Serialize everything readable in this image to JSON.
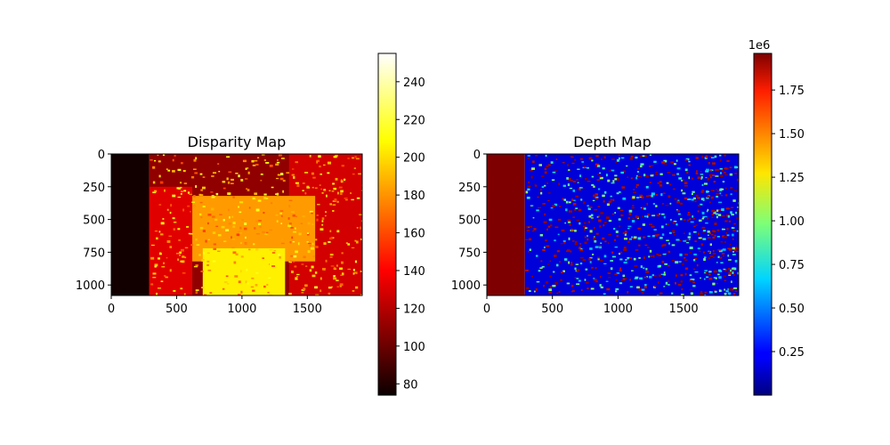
{
  "chart_data": [
    {
      "type": "heatmap",
      "title": "Disparity Map",
      "colormap": "hot",
      "image_width": 1920,
      "image_height": 1080,
      "x_ticks": [
        0,
        500,
        1000,
        1500
      ],
      "y_ticks": [
        0,
        250,
        500,
        750,
        1000
      ],
      "colorbar": {
        "min": 74,
        "max": 255,
        "ticks": [
          80,
          100,
          120,
          140,
          160,
          180,
          200,
          220,
          240
        ],
        "offset_label": ""
      },
      "regions": [
        {
          "name": "left-empty-band",
          "x": [
            0,
            290
          ],
          "y": [
            0,
            1080
          ],
          "value": 76
        },
        {
          "name": "background-wall",
          "x": [
            290,
            1920
          ],
          "y": [
            0,
            1080
          ],
          "value": 110
        },
        {
          "name": "right-panel",
          "x": [
            1360,
            1920
          ],
          "y": [
            0,
            1080
          ],
          "value": 128
        },
        {
          "name": "left-figure",
          "x": [
            290,
            620
          ],
          "y": [
            250,
            1080
          ],
          "value": 132
        },
        {
          "name": "chessboard",
          "x": [
            620,
            1560
          ],
          "y": [
            320,
            820
          ],
          "value": 182
        },
        {
          "name": "table-base",
          "x": [
            700,
            1330
          ],
          "y": [
            720,
            1080
          ],
          "value": 205
        }
      ]
    },
    {
      "type": "heatmap",
      "title": "Depth Map",
      "colormap": "jet",
      "image_width": 1920,
      "image_height": 1080,
      "x_ticks": [
        0,
        500,
        1000,
        1500
      ],
      "y_ticks": [
        0,
        250,
        500,
        750,
        1000
      ],
      "colorbar": {
        "min": 0,
        "max": 1960000,
        "ticks": [
          0.25,
          0.5,
          0.75,
          1.0,
          1.25,
          1.5,
          1.75
        ],
        "tick_labels": [
          "0.25",
          "0.50",
          "0.75",
          "1.00",
          "1.25",
          "1.50",
          "1.75"
        ],
        "offset_label": "1e6"
      },
      "regions": [
        {
          "name": "left-empty-band",
          "x": [
            0,
            290
          ],
          "y": [
            0,
            1080
          ],
          "value": 1960000
        },
        {
          "name": "scene",
          "x": [
            290,
            1920
          ],
          "y": [
            0,
            1080
          ],
          "value": 150000
        }
      ]
    }
  ]
}
